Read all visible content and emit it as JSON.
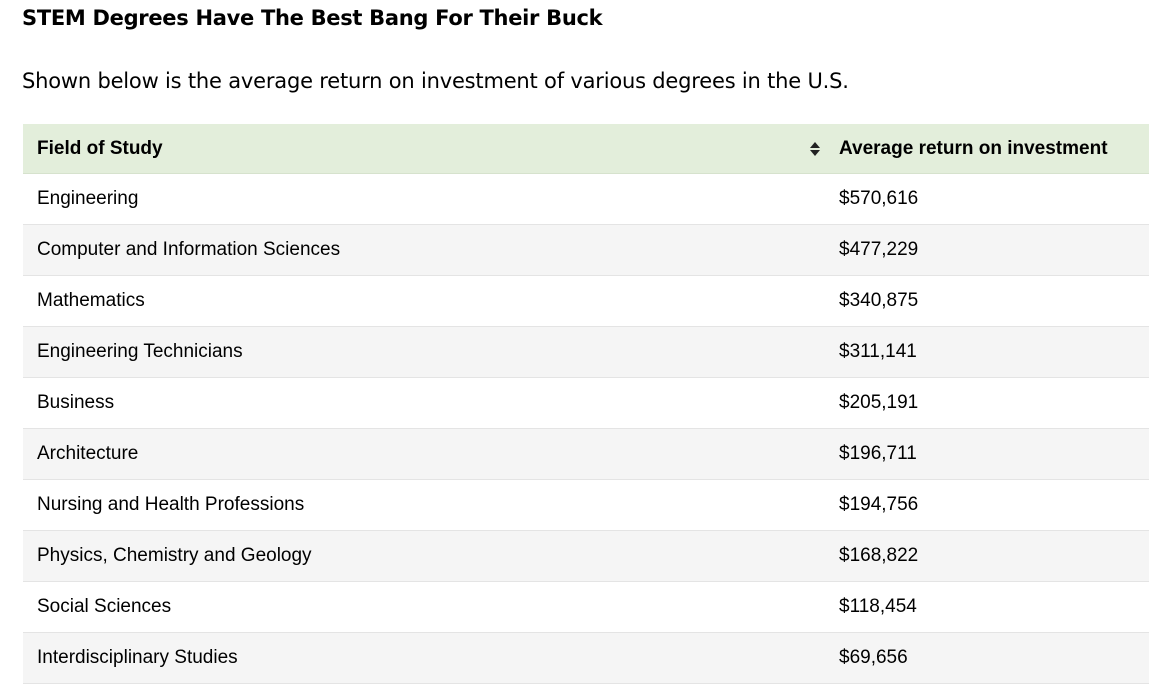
{
  "chart_data": {
    "type": "table",
    "title": "STEM Degrees Have The Best Bang For Their Buck",
    "subtitle": "Shown below is the average return on investment of various degrees in the U.S.",
    "columns": [
      "Field of Study",
      "Average return on investment"
    ],
    "rows": [
      {
        "field": "Engineering",
        "roi": "$570,616",
        "value": 570616
      },
      {
        "field": "Computer and Information Sciences",
        "roi": "$477,229",
        "value": 477229
      },
      {
        "field": "Mathematics",
        "roi": "$340,875",
        "value": 340875
      },
      {
        "field": "Engineering Technicians",
        "roi": "$311,141",
        "value": 311141
      },
      {
        "field": "Business",
        "roi": "$205,191",
        "value": 205191
      },
      {
        "field": "Architecture",
        "roi": "$196,711",
        "value": 196711
      },
      {
        "field": "Nursing and Health Professions",
        "roi": "$194,756",
        "value": 194756
      },
      {
        "field": "Physics, Chemistry and Geology",
        "roi": "$168,822",
        "value": 168822
      },
      {
        "field": "Social Sciences",
        "roi": "$118,454",
        "value": 118454
      },
      {
        "field": "Interdisciplinary Studies",
        "roi": "$69,656",
        "value": 69656
      }
    ]
  },
  "colors": {
    "header_bg": "#e3eedb",
    "alt_row_bg": "#f5f5f5",
    "row_border": "#e4e4e4"
  },
  "icons": {
    "sort": "sort-up-down-icon"
  }
}
